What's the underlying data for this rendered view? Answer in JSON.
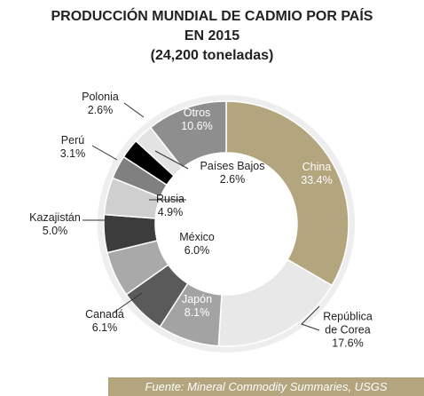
{
  "chart_data": {
    "type": "donut",
    "title": "PRODUCCIÓN MUNDIAL DE CADMIO POR PAÍS",
    "subtitle": "EN 2015",
    "note": "(24,200 toneladas)",
    "source": "Fuente: Mineral Commodity Summaries, USGS",
    "categories": [
      "China",
      "República de Corea",
      "Japón",
      "Canadá",
      "México",
      "Kazajistán",
      "Rusia",
      "Perú",
      "Países Bajos",
      "Polonia",
      "Otros"
    ],
    "values": [
      33.4,
      17.6,
      8.1,
      6.1,
      6.0,
      5.0,
      4.9,
      3.1,
      2.6,
      2.6,
      10.6
    ],
    "value_labels": [
      "33.4%",
      "17.6%",
      "8.1%",
      "6.1%",
      "6.0%",
      "5.0%",
      "4.9%",
      "3.1%",
      "2.6%",
      "2.6%",
      "10.6%"
    ],
    "colors": [
      "#b3a57d",
      "#e8e8e8",
      "#a3a3a3",
      "#5a5a5a",
      "#a9a9a9",
      "#3c3c3c",
      "#cfcfcf",
      "#808080",
      "#000000",
      "#e3e3e3",
      "#8e8e8e"
    ]
  }
}
